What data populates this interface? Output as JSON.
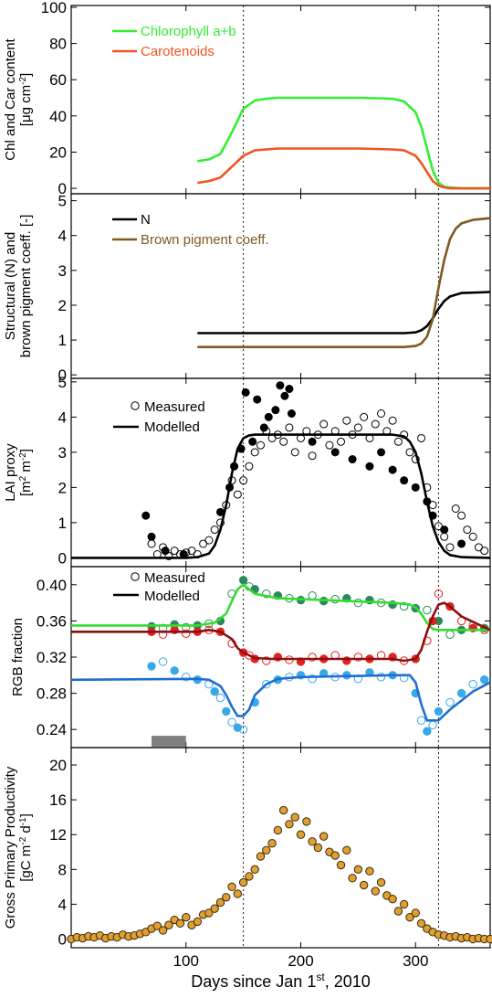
{
  "figure": {
    "x_axis": {
      "label_main": "Days since Jan 1",
      "label_sup": "st",
      "label_end": ", 2010",
      "ticks": [
        100,
        200,
        300
      ],
      "range": [
        0,
        365
      ]
    },
    "vlines": [
      150,
      320
    ],
    "grey_bar": {
      "x": [
        70,
        100
      ],
      "color": "#808080"
    }
  },
  "chart_data": [
    {
      "type": "line",
      "ylabel": [
        "Chl and Car content",
        "[μg cm^-2]"
      ],
      "ylim": [
        -3,
        101
      ],
      "yticks": [
        0,
        20,
        40,
        60,
        80,
        100
      ],
      "legend": "top-left",
      "series": [
        {
          "name": "Chlorophyll a+b",
          "color": "#33ee33",
          "x": [
            110,
            120,
            130,
            140,
            150,
            160,
            170,
            180,
            200,
            250,
            280,
            290,
            300,
            305,
            310,
            315,
            320,
            325,
            330,
            340,
            365
          ],
          "y": [
            15,
            16,
            19,
            31,
            44,
            48.5,
            49.5,
            50,
            50,
            50,
            49.5,
            48,
            42,
            34,
            22,
            10,
            3,
            1,
            0.5,
            0,
            0
          ]
        },
        {
          "name": "Carotenoids",
          "color": "#ee5522",
          "x": [
            110,
            120,
            130,
            140,
            150,
            160,
            170,
            180,
            200,
            250,
            280,
            290,
            300,
            305,
            310,
            315,
            320,
            325,
            330,
            340,
            365
          ],
          "y": [
            3,
            4,
            6,
            12,
            18,
            21,
            21.5,
            22,
            22,
            22,
            21.5,
            21,
            18,
            14,
            9,
            4,
            1.5,
            0.5,
            0,
            0,
            0
          ]
        }
      ]
    },
    {
      "type": "line",
      "ylabel": [
        "Structural (N) and",
        "brown pigment coeff. [-]"
      ],
      "ylim": [
        -0.1,
        5.2
      ],
      "yticks": [
        0,
        1,
        2,
        3,
        4,
        5
      ],
      "legend": "top-left",
      "series": [
        {
          "name": "N",
          "color": "#000000",
          "x": [
            110,
            290,
            300,
            305,
            310,
            315,
            320,
            325,
            330,
            340,
            365
          ],
          "y": [
            1.2,
            1.2,
            1.22,
            1.28,
            1.4,
            1.62,
            1.9,
            2.12,
            2.25,
            2.35,
            2.38
          ]
        },
        {
          "name": "Brown pigment coeff.",
          "color": "#7f5a1e",
          "x": [
            110,
            290,
            300,
            305,
            310,
            315,
            320,
            325,
            330,
            335,
            340,
            350,
            365
          ],
          "y": [
            0.8,
            0.8,
            0.83,
            0.9,
            1.1,
            1.6,
            2.5,
            3.3,
            3.9,
            4.2,
            4.35,
            4.45,
            4.5
          ]
        }
      ]
    },
    {
      "type": "scatter",
      "ylabel": [
        "LAI proxy",
        "[m^2 m^-2]"
      ],
      "ylim": [
        -0.25,
        5.1
      ],
      "yticks": [
        0,
        1,
        2,
        3,
        4,
        5
      ],
      "legend": "top-left",
      "series": [
        {
          "name": "Measured",
          "marker": "open-circle",
          "color": "#000000",
          "x": [
            70,
            75,
            80,
            85,
            90,
            95,
            100,
            105,
            110,
            115,
            120,
            125,
            130,
            135,
            140,
            145,
            150,
            155,
            160,
            165,
            170,
            175,
            180,
            185,
            190,
            195,
            200,
            205,
            210,
            215,
            220,
            225,
            230,
            235,
            240,
            245,
            250,
            255,
            260,
            265,
            270,
            275,
            280,
            285,
            290,
            295,
            300,
            305,
            310,
            315,
            320,
            325,
            330,
            335,
            340,
            345,
            350,
            355,
            360
          ],
          "y": [
            0.4,
            0.1,
            0.3,
            0.05,
            0.2,
            0.1,
            0.15,
            0.2,
            0.1,
            0.4,
            0.5,
            0.8,
            1.0,
            1.5,
            2.2,
            1.8,
            2.2,
            2.6,
            3.0,
            3.2,
            3.6,
            3.4,
            3.5,
            3.3,
            3.7,
            3.0,
            3.4,
            3.6,
            2.9,
            3.5,
            3.8,
            3.2,
            3.6,
            3.3,
            3.9,
            3.5,
            3.7,
            4.0,
            3.4,
            3.8,
            4.1,
            3.6,
            3.9,
            3.3,
            3.5,
            3.0,
            2.8,
            3.4,
            2.0,
            1.5,
            0.9,
            0.6,
            0.3,
            1.4,
            1.2,
            0.8,
            0.6,
            0.3,
            0.2
          ]
        },
        {
          "name": "Measured (filled)",
          "marker": "filled-circle",
          "color": "#000000",
          "x": [
            65,
            70,
            82,
            98,
            130,
            138,
            142,
            148,
            152,
            158,
            162,
            168,
            172,
            178,
            182,
            186,
            190,
            192,
            210,
            230,
            245,
            260,
            270,
            280,
            290,
            300,
            310,
            315,
            325,
            340
          ],
          "y": [
            1.2,
            0.6,
            0.2,
            0.1,
            1.3,
            2.0,
            2.6,
            3.1,
            4.7,
            3.3,
            4.5,
            3.7,
            4.0,
            4.2,
            4.9,
            4.6,
            4.8,
            4.1,
            3.3,
            3.0,
            2.8,
            2.6,
            3.0,
            2.5,
            2.2,
            2.0,
            1.6,
            1.2,
            0.8,
            0.4
          ]
        },
        {
          "name": "Modelled",
          "type": "line",
          "color": "#000000",
          "x": [
            0,
            100,
            110,
            120,
            125,
            130,
            135,
            140,
            145,
            150,
            155,
            160,
            280,
            290,
            295,
            300,
            305,
            310,
            315,
            320,
            325,
            330,
            340,
            365
          ],
          "y": [
            0,
            0,
            0.02,
            0.12,
            0.35,
            0.8,
            1.5,
            2.4,
            3.1,
            3.4,
            3.48,
            3.5,
            3.5,
            3.45,
            3.3,
            3.0,
            2.4,
            1.6,
            0.9,
            0.45,
            0.2,
            0.08,
            0.02,
            0
          ]
        }
      ]
    },
    {
      "type": "scatter",
      "ylabel": [
        "RGB fraction"
      ],
      "ylim": [
        0.22,
        0.42
      ],
      "yticks": [
        0.24,
        0.28,
        0.32,
        0.36,
        0.4
      ],
      "legend": "top-left",
      "series": [
        {
          "name": "Modelled green",
          "type": "line",
          "color": "#33dd33",
          "x": [
            0,
            110,
            125,
            135,
            140,
            145,
            150,
            160,
            180,
            280,
            295,
            300,
            305,
            310,
            315,
            320,
            330,
            365
          ],
          "y": [
            0.355,
            0.355,
            0.358,
            0.368,
            0.382,
            0.395,
            0.4,
            0.39,
            0.385,
            0.38,
            0.378,
            0.375,
            0.368,
            0.358,
            0.351,
            0.35,
            0.35,
            0.35
          ]
        },
        {
          "name": "Modelled red",
          "type": "line",
          "color": "#8b1010",
          "x": [
            0,
            110,
            120,
            130,
            140,
            145,
            150,
            160,
            175,
            280,
            290,
            300,
            305,
            310,
            315,
            320,
            325,
            330,
            340,
            365
          ],
          "y": [
            0.348,
            0.348,
            0.35,
            0.348,
            0.34,
            0.33,
            0.325,
            0.319,
            0.318,
            0.318,
            0.316,
            0.318,
            0.328,
            0.348,
            0.365,
            0.378,
            0.38,
            0.376,
            0.365,
            0.35
          ]
        },
        {
          "name": "Modelled blue",
          "type": "line",
          "color": "#1f6fd0",
          "x": [
            0,
            110,
            120,
            130,
            135,
            140,
            145,
            150,
            155,
            160,
            170,
            180,
            200,
            280,
            295,
            300,
            305,
            310,
            320,
            330,
            340,
            350,
            365
          ],
          "y": [
            0.295,
            0.296,
            0.295,
            0.288,
            0.278,
            0.265,
            0.255,
            0.255,
            0.262,
            0.278,
            0.29,
            0.296,
            0.298,
            0.3,
            0.3,
            0.292,
            0.268,
            0.25,
            0.25,
            0.262,
            0.272,
            0.282,
            0.292
          ]
        },
        {
          "name": "Measured green",
          "marker": "mixed-circle",
          "color": "#2b8a5a",
          "x": [
            70,
            80,
            90,
            100,
            110,
            120,
            130,
            140,
            150,
            155,
            160,
            170,
            180,
            190,
            200,
            210,
            220,
            230,
            240,
            250,
            260,
            270,
            280,
            290,
            300,
            310,
            320,
            330,
            340,
            350,
            360
          ],
          "y": [
            0.354,
            0.352,
            0.356,
            0.353,
            0.355,
            0.357,
            0.36,
            0.39,
            0.405,
            0.398,
            0.395,
            0.39,
            0.388,
            0.385,
            0.383,
            0.388,
            0.382,
            0.384,
            0.385,
            0.38,
            0.383,
            0.38,
            0.378,
            0.376,
            0.374,
            0.372,
            0.36,
            0.345,
            0.35,
            0.355,
            0.352
          ]
        },
        {
          "name": "Measured red",
          "marker": "mixed-circle",
          "color": "#e52020",
          "x": [
            70,
            80,
            90,
            100,
            110,
            120,
            130,
            140,
            150,
            155,
            160,
            170,
            180,
            190,
            200,
            210,
            220,
            230,
            240,
            250,
            260,
            270,
            280,
            290,
            300,
            310,
            315,
            320,
            330,
            340,
            350,
            360
          ],
          "y": [
            0.348,
            0.345,
            0.35,
            0.346,
            0.348,
            0.35,
            0.348,
            0.335,
            0.325,
            0.322,
            0.318,
            0.316,
            0.32,
            0.317,
            0.315,
            0.32,
            0.318,
            0.322,
            0.316,
            0.32,
            0.318,
            0.322,
            0.32,
            0.316,
            0.318,
            0.338,
            0.36,
            0.39,
            0.376,
            0.36,
            0.352,
            0.35
          ]
        },
        {
          "name": "Measured blue",
          "marker": "mixed-circle",
          "color": "#38a8e8",
          "x": [
            70,
            80,
            90,
            100,
            110,
            120,
            125,
            130,
            135,
            140,
            145,
            150,
            160,
            170,
            180,
            190,
            200,
            210,
            220,
            230,
            240,
            250,
            260,
            270,
            280,
            290,
            300,
            305,
            310,
            315,
            320,
            330,
            340,
            350,
            360
          ],
          "y": [
            0.31,
            0.315,
            0.305,
            0.298,
            0.295,
            0.29,
            0.282,
            0.275,
            0.26,
            0.248,
            0.242,
            0.24,
            0.27,
            0.29,
            0.295,
            0.298,
            0.3,
            0.296,
            0.302,
            0.298,
            0.3,
            0.296,
            0.303,
            0.298,
            0.3,
            0.297,
            0.28,
            0.25,
            0.238,
            0.245,
            0.26,
            0.27,
            0.28,
            0.29,
            0.295
          ]
        }
      ],
      "legend_entries": [
        {
          "name": "Measured",
          "marker": "open-circle"
        },
        {
          "name": "Modelled",
          "marker": "line"
        }
      ]
    },
    {
      "type": "scatter",
      "ylabel": [
        "Gross Primary Productivity",
        "[gC m^-2 d^-1]"
      ],
      "ylim": [
        -1,
        22
      ],
      "yticks": [
        0,
        4,
        8,
        12,
        16,
        20
      ],
      "series": [
        {
          "name": "GPP",
          "marker": "filled-circle",
          "color": "#e0a030",
          "x": [
            0,
            5,
            10,
            15,
            20,
            25,
            30,
            35,
            40,
            45,
            50,
            55,
            60,
            65,
            70,
            75,
            80,
            85,
            90,
            95,
            100,
            105,
            110,
            115,
            120,
            125,
            130,
            135,
            140,
            145,
            150,
            155,
            160,
            165,
            170,
            175,
            180,
            185,
            190,
            195,
            200,
            205,
            210,
            215,
            220,
            225,
            230,
            235,
            240,
            245,
            250,
            255,
            260,
            265,
            270,
            275,
            280,
            285,
            290,
            295,
            300,
            305,
            310,
            315,
            320,
            325,
            330,
            335,
            340,
            345,
            350,
            355,
            360,
            365
          ],
          "y": [
            0,
            0.2,
            0.1,
            0.3,
            0.2,
            0.4,
            0.1,
            0.3,
            0.2,
            0.5,
            0.3,
            0.4,
            0.6,
            0.8,
            1.2,
            1.5,
            1.0,
            1.6,
            2.2,
            1.8,
            2.5,
            1.6,
            2.0,
            2.8,
            3.0,
            3.5,
            4.2,
            4.8,
            6.0,
            5.2,
            6.5,
            7.2,
            8.0,
            9.5,
            10.2,
            11.0,
            12.5,
            14.8,
            13.2,
            14.0,
            12.0,
            13.5,
            11.2,
            10.5,
            11.8,
            10.0,
            9.6,
            8.5,
            10.2,
            7.0,
            8.0,
            6.2,
            7.8,
            5.5,
            6.5,
            5.0,
            4.6,
            3.2,
            4.0,
            2.5,
            3.0,
            1.8,
            1.2,
            0.8,
            0.5,
            0.4,
            0.2,
            0.3,
            0.1,
            0.2,
            0,
            0.1,
            0,
            0
          ]
        }
      ]
    }
  ]
}
